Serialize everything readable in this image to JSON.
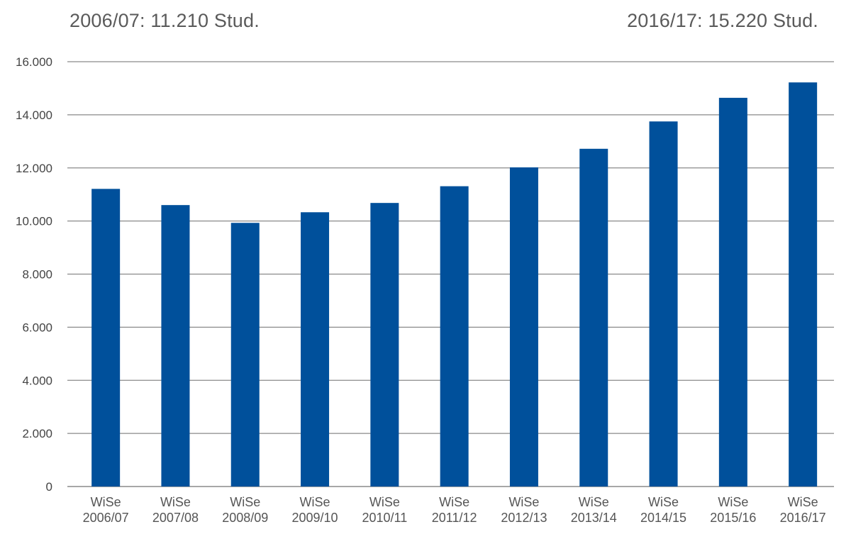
{
  "chart_data": {
    "type": "bar",
    "categories": [
      [
        "WiSe",
        "2006/07"
      ],
      [
        "WiSe",
        "2007/08"
      ],
      [
        "WiSe",
        "2008/09"
      ],
      [
        "WiSe",
        "2009/10"
      ],
      [
        "WiSe",
        "2010/11"
      ],
      [
        "WiSe",
        "2011/12"
      ],
      [
        "WiSe",
        "2012/13"
      ],
      [
        "WiSe",
        "2013/14"
      ],
      [
        "WiSe",
        "2014/15"
      ],
      [
        "WiSe",
        "2015/16"
      ],
      [
        "WiSe",
        "2016/17"
      ]
    ],
    "values": [
      11210,
      10600,
      9930,
      10330,
      10680,
      11310,
      12020,
      12720,
      13750,
      14640,
      15220
    ],
    "yticks": [
      "0",
      "2.000",
      "4.000",
      "6.000",
      "8.000",
      "10.000",
      "12.000",
      "14.000",
      "16.000"
    ],
    "ylim": [
      0,
      16000
    ],
    "ytick_step": 2000,
    "grid": true,
    "bar_color": "#00509b",
    "grid_color": "#8a8a8a",
    "annotations": {
      "left": "2006/07: 11.210 Stud.",
      "right": "2016/17: 15.220 Stud."
    }
  }
}
